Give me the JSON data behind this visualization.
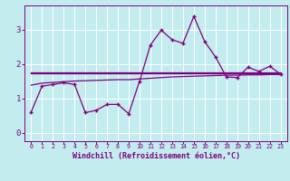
{
  "xlabel": "Windchill (Refroidissement éolien,°C)",
  "x_ticks": [
    0,
    1,
    2,
    3,
    4,
    5,
    6,
    7,
    8,
    9,
    10,
    11,
    12,
    13,
    14,
    15,
    16,
    17,
    18,
    19,
    20,
    21,
    22,
    23
  ],
  "y_ticks": [
    0,
    1,
    2,
    3
  ],
  "ylim": [
    -0.25,
    3.7
  ],
  "xlim": [
    -0.6,
    23.6
  ],
  "bg_color": "#c2ecee",
  "line_color": "#800080",
  "grid_color": "#ffffff",
  "data_main": [
    0.6,
    1.35,
    1.4,
    1.45,
    1.4,
    0.58,
    0.65,
    0.82,
    0.82,
    0.55,
    1.5,
    2.55,
    2.98,
    2.7,
    2.6,
    3.38,
    2.65,
    2.2,
    1.62,
    1.6,
    1.9,
    1.78,
    1.93,
    1.7
  ],
  "data_avg1": [
    1.72,
    1.72,
    1.72,
    1.72,
    1.72,
    1.72,
    1.72,
    1.72,
    1.72,
    1.72,
    1.72,
    1.72,
    1.72,
    1.72,
    1.72,
    1.72,
    1.72,
    1.72,
    1.72,
    1.72,
    1.72,
    1.72,
    1.72,
    1.72
  ],
  "data_avg2": [
    1.38,
    1.44,
    1.46,
    1.48,
    1.5,
    1.51,
    1.52,
    1.53,
    1.54,
    1.54,
    1.56,
    1.58,
    1.6,
    1.62,
    1.63,
    1.64,
    1.65,
    1.66,
    1.67,
    1.67,
    1.68,
    1.68,
    1.69,
    1.69
  ],
  "data_avg3": [
    1.74,
    1.74,
    1.74,
    1.74,
    1.74,
    1.74,
    1.74,
    1.74,
    1.74,
    1.74,
    1.74,
    1.74,
    1.74,
    1.74,
    1.74,
    1.74,
    1.74,
    1.74,
    1.74,
    1.74,
    1.74,
    1.74,
    1.74,
    1.74
  ]
}
